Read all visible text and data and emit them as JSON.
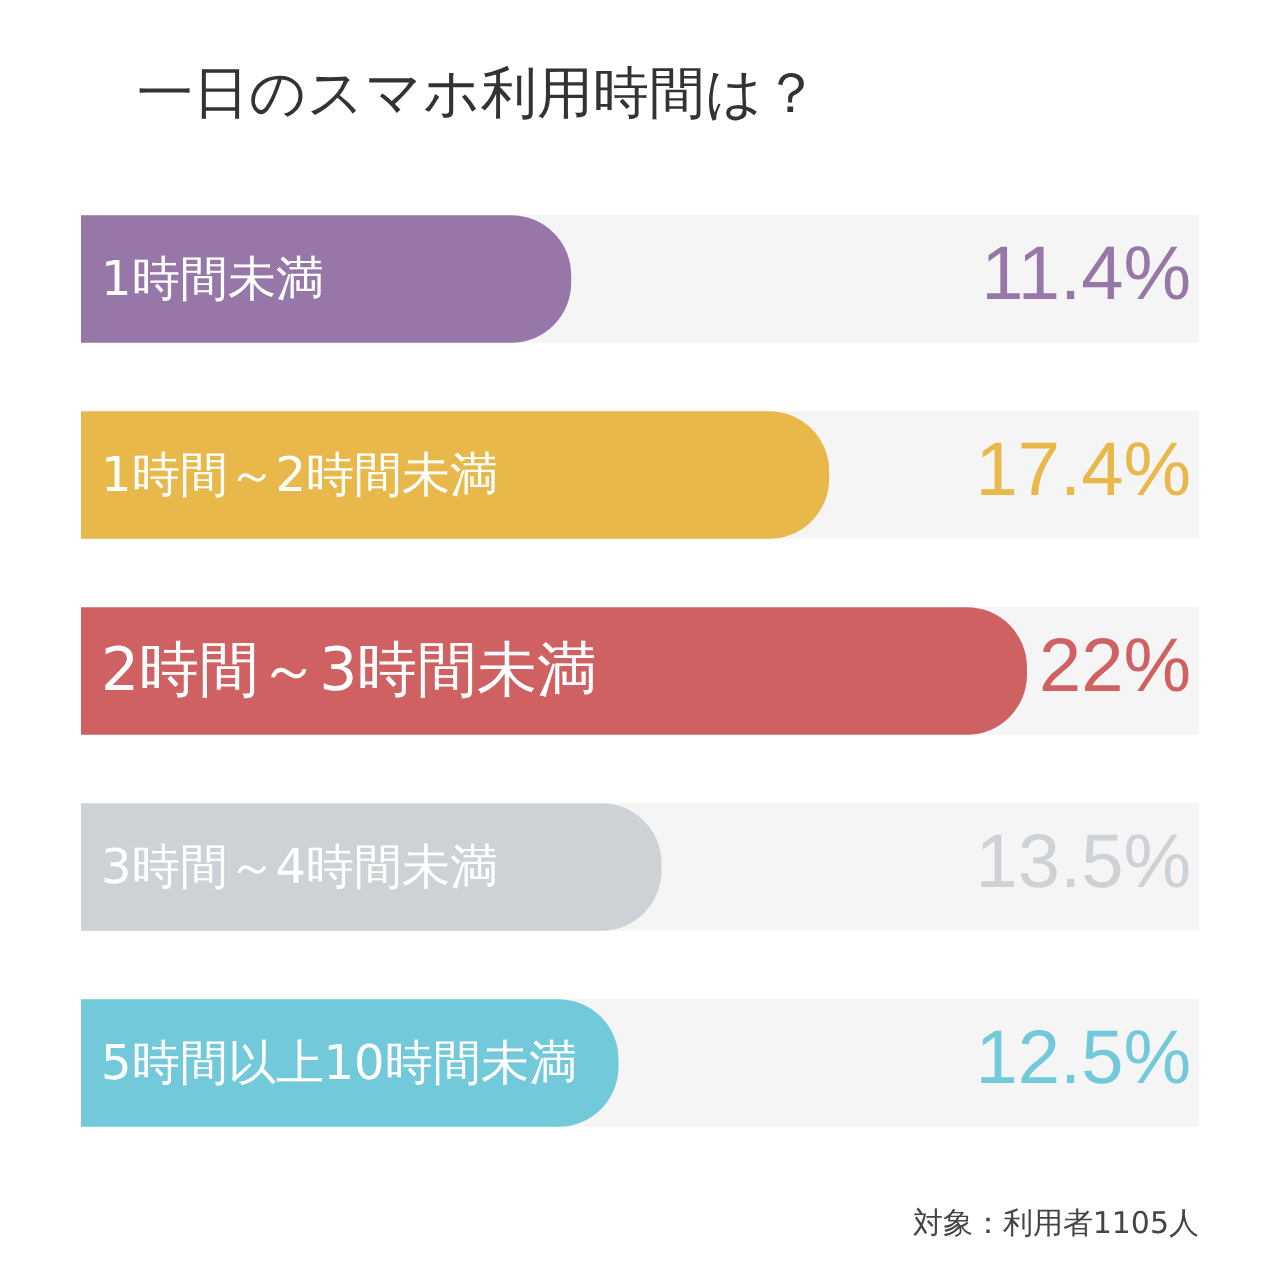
{
  "chart_data": {
    "type": "bar",
    "orientation": "horizontal",
    "title": "一日のスマホ利用時間は？",
    "categories": [
      "1時間未満",
      "1時間～2時間未満",
      "2時間～3時間未満",
      "3時間～4時間未満",
      "5時間以上10時間未満"
    ],
    "values": [
      11.4,
      17.4,
      22,
      13.5,
      12.5
    ],
    "colors": [
      "#9677a8",
      "#e8b94a",
      "#cf6163",
      "#cdd2d6",
      "#72c9da"
    ],
    "xlim": [
      0,
      26
    ],
    "value_labels": [
      "11.4%",
      "17.4%",
      "22%",
      "13.5%",
      "12.5%"
    ],
    "annotations": [
      "対象：利用者1105人"
    ]
  }
}
